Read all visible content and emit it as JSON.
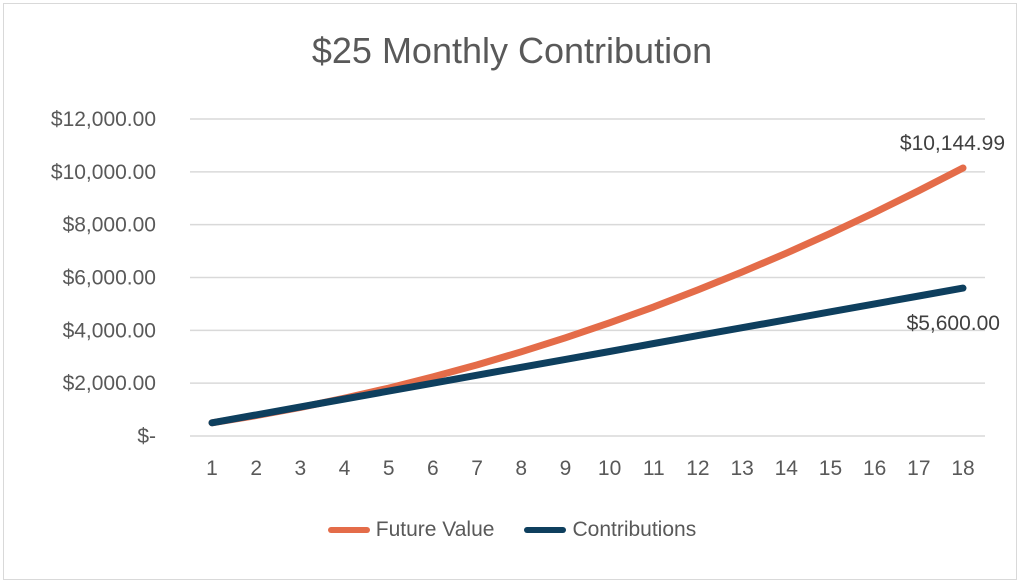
{
  "chart_data": {
    "type": "line",
    "title": "$25 Monthly Contribution",
    "xlabel": "",
    "ylabel": "",
    "categories": [
      1,
      2,
      3,
      4,
      5,
      6,
      7,
      8,
      9,
      10,
      11,
      12,
      13,
      14,
      15,
      16,
      17,
      18
    ],
    "ylim": [
      0,
      12000
    ],
    "yticks": [
      "$-",
      "$2,000.00",
      "$4,000.00",
      "$6,000.00",
      "$8,000.00",
      "$10,000.00",
      "$12,000.00"
    ],
    "grid": true,
    "legend_position": "bottom",
    "series": [
      {
        "name": "Future Value",
        "color": "#E46C49",
        "values": [
          500,
          860,
          1250,
          1660,
          2100,
          2570,
          3070,
          3600,
          4170,
          4770,
          5410,
          6100,
          6830,
          7610,
          8440,
          9310,
          10230,
          10144.99
        ]
      },
      {
        "name": "Contributions",
        "color": "#0E3F5E",
        "values": [
          500,
          800,
          1100,
          1400,
          1700,
          2000,
          2300,
          2600,
          2900,
          3200,
          3500,
          3800,
          4100,
          4400,
          4700,
          5000,
          5300,
          5600
        ]
      }
    ],
    "annotations": [
      {
        "series": "Future Value",
        "x": 18,
        "text": "$10,144.99"
      },
      {
        "series": "Contributions",
        "x": 18,
        "text": "$5,600.00"
      }
    ]
  },
  "legend": {
    "future_value": "Future Value",
    "contributions": "Contributions"
  }
}
